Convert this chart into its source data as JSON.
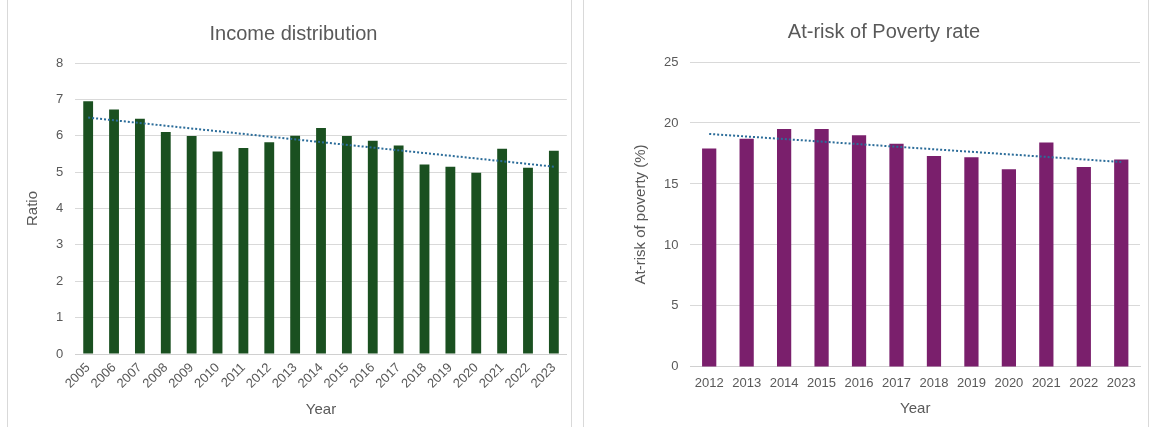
{
  "chart_data": [
    {
      "type": "bar",
      "title": "Income distribution",
      "xlabel": "Year",
      "ylabel": "Ratio",
      "x": [
        2005,
        2006,
        2007,
        2008,
        2009,
        2010,
        2011,
        2012,
        2013,
        2014,
        2015,
        2016,
        2017,
        2018,
        2019,
        2020,
        2021,
        2022,
        2023
      ],
      "series": [
        {
          "type": "bar",
          "color": "#1a5020",
          "values": [
            6.95,
            6.72,
            6.47,
            6.1,
            5.99,
            5.57,
            5.66,
            5.82,
            6.0,
            6.21,
            5.99,
            5.86,
            5.73,
            5.21,
            5.15,
            4.98,
            5.64,
            5.12,
            5.59
          ]
        },
        {
          "type": "line",
          "color": "#2b6c99",
          "x": [
            2005,
            2023
          ],
          "values": [
            6.5,
            5.15
          ]
        }
      ],
      "xlim": [
        2004.5,
        2023.5
      ],
      "xticks": [
        2005,
        2006,
        2007,
        2008,
        2009,
        2010,
        2011,
        2012,
        2013,
        2014,
        2015,
        2016,
        2017,
        2018,
        2019,
        2020,
        2021,
        2022,
        2023
      ],
      "ylim": [
        0,
        8
      ],
      "yticks": [
        0,
        1,
        2,
        3,
        4,
        5,
        6,
        7,
        8
      ],
      "grid": "y",
      "line_style": "dotted",
      "marker": "none"
    },
    {
      "type": "bar",
      "title": "At-risk of Poverty rate",
      "xlabel": "Year",
      "ylabel": "At-risk of poverty (%)",
      "x": [
        2012,
        2013,
        2014,
        2015,
        2016,
        2017,
        2018,
        2019,
        2020,
        2021,
        2022,
        2023
      ],
      "series": [
        {
          "type": "bar",
          "color": "#7a1f6c",
          "values": [
            17.9,
            18.7,
            19.5,
            19.5,
            19.0,
            18.3,
            17.3,
            17.2,
            16.2,
            18.4,
            16.4,
            17.0
          ]
        },
        {
          "type": "line",
          "color": "#2b6c99",
          "x": [
            2012,
            2023
          ],
          "values": [
            19.1,
            16.8
          ]
        }
      ],
      "xlim": [
        2011.5,
        2023.5
      ],
      "xticks": [
        2012,
        2013,
        2014,
        2015,
        2016,
        2017,
        2018,
        2019,
        2020,
        2021,
        2022,
        2023
      ],
      "ylim": [
        0,
        25
      ],
      "yticks": [
        0,
        5,
        10,
        15,
        20,
        25
      ],
      "grid": "y",
      "line_style": "dotted",
      "marker": "none"
    }
  ]
}
